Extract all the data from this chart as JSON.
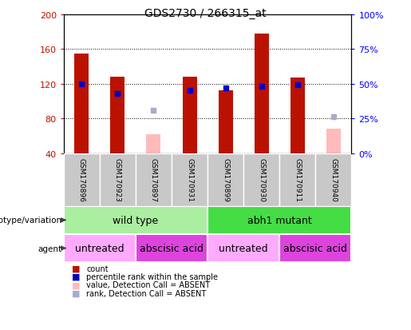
{
  "title": "GDS2730 / 266315_at",
  "samples": [
    "GSM170896",
    "GSM170923",
    "GSM170897",
    "GSM170931",
    "GSM170899",
    "GSM170930",
    "GSM170911",
    "GSM170940"
  ],
  "count_values": [
    155,
    128,
    null,
    128,
    112,
    178,
    127,
    null
  ],
  "count_absent_values": [
    null,
    null,
    62,
    null,
    null,
    null,
    null,
    68
  ],
  "percentile_values": [
    50,
    43,
    null,
    45,
    47,
    48,
    49,
    null
  ],
  "percentile_absent_values": [
    null,
    null,
    31,
    null,
    null,
    null,
    null,
    26
  ],
  "ymin": 40,
  "ymax": 200,
  "yticks": [
    40,
    80,
    120,
    160,
    200
  ],
  "y2ticks": [
    0,
    25,
    50,
    75,
    100
  ],
  "bar_width": 0.4,
  "red_color": "#bb1100",
  "pink_color": "#ffbbbb",
  "blue_color": "#0000cc",
  "light_blue_color": "#aaaacc",
  "genotype_groups": [
    {
      "label": "wild type",
      "start": 0,
      "end": 3,
      "color": "#aaeea0"
    },
    {
      "label": "abh1 mutant",
      "start": 4,
      "end": 7,
      "color": "#44dd44"
    }
  ],
  "agent_groups": [
    {
      "label": "untreated",
      "start": 0,
      "end": 1,
      "color": "#ffaaff"
    },
    {
      "label": "abscisic acid",
      "start": 2,
      "end": 3,
      "color": "#dd44dd"
    },
    {
      "label": "untreated",
      "start": 4,
      "end": 5,
      "color": "#ffaaff"
    },
    {
      "label": "abscisic acid",
      "start": 6,
      "end": 7,
      "color": "#dd44dd"
    }
  ],
  "legend_items": [
    {
      "label": "count",
      "color": "#bb1100"
    },
    {
      "label": "percentile rank within the sample",
      "color": "#0000cc"
    },
    {
      "label": "value, Detection Call = ABSENT",
      "color": "#ffbbbb"
    },
    {
      "label": "rank, Detection Call = ABSENT",
      "color": "#aaaacc"
    }
  ]
}
